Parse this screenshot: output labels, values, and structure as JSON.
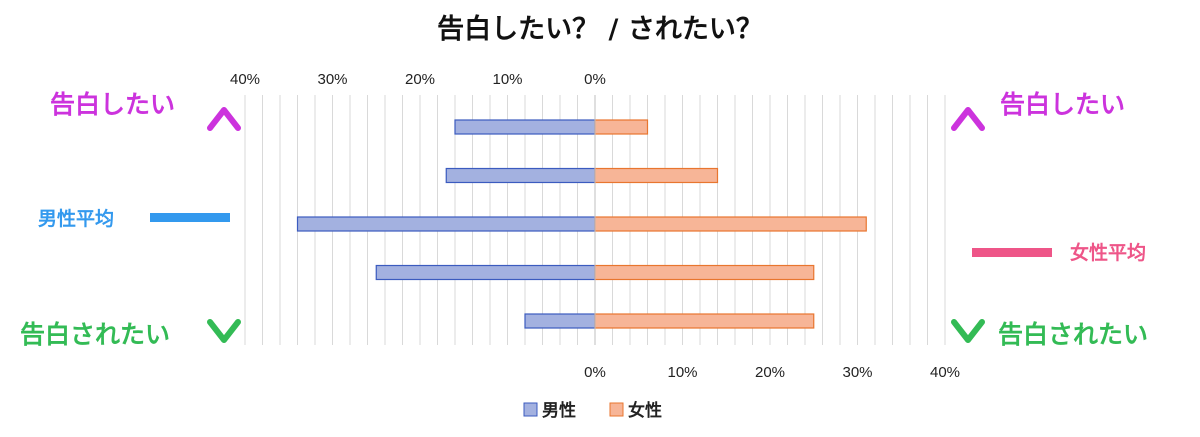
{
  "chart_data": {
    "type": "bar",
    "title": "告白したい？ / されたい？",
    "categories": [
      "",
      "",
      "",
      "",
      ""
    ],
    "series": [
      {
        "name": "男性",
        "values": [
          16,
          17,
          34,
          25,
          8
        ],
        "color": "#a3b1e0",
        "stroke": "#3b5bbf"
      },
      {
        "name": "女性",
        "values": [
          6,
          14,
          31,
          25,
          25
        ],
        "color": "#f7b597",
        "stroke": "#e8762f"
      }
    ],
    "xlim": [
      0,
      40
    ],
    "top_ticks": [
      "40%",
      "30%",
      "20%",
      "10%",
      "0%"
    ],
    "bottom_ticks": [
      "0%",
      "10%",
      "20%",
      "30%",
      "40%"
    ],
    "grid": true,
    "legend_position": "bottom",
    "left_top_label": "告白したい",
    "left_bottom_label": "告白されたい",
    "right_top_label": "告白したい",
    "right_bottom_label": "告白されたい",
    "male_avg_label": "男性平均",
    "female_avg_label": "女性平均",
    "colors": {
      "want_to_confess": "#cc33dd",
      "want_to_be_confessed": "#33bb55",
      "male_avg": "#3399ee",
      "female_avg": "#ee5588"
    }
  }
}
